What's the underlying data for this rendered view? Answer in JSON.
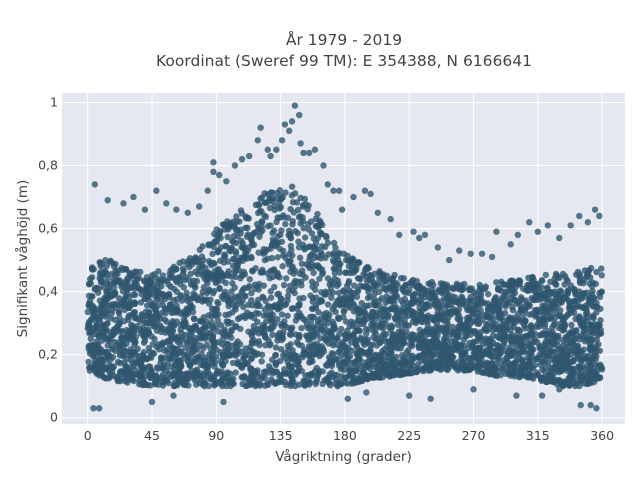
{
  "chart_data": {
    "type": "scatter",
    "title_lines": [
      "År 1979 - 2019",
      "Koordinat (Sweref 99 TM): E 354388, N 6166641"
    ],
    "xlabel": "Vågriktning (grader)",
    "ylabel": "Signifikant våghöjd (m)",
    "xlim": [
      -18,
      376
    ],
    "ylim": [
      -0.02,
      1.03
    ],
    "x_ticks": [
      0,
      45,
      90,
      135,
      180,
      225,
      270,
      315,
      360
    ],
    "x_tick_labels": [
      "0",
      "45",
      "90",
      "135",
      "180",
      "225",
      "270",
      "315",
      "360"
    ],
    "y_ticks": [
      0,
      0.2,
      0.4,
      0.6,
      0.8,
      1
    ],
    "y_tick_labels": [
      "0",
      "0,2",
      "0,4",
      "0,6",
      "0,8",
      "1"
    ],
    "grid": true,
    "marker_color": "#30566f",
    "plot_background": "#e5e8f0",
    "envelope": {
      "x": [
        0,
        15,
        30,
        45,
        60,
        75,
        90,
        105,
        120,
        135,
        150,
        165,
        180,
        195,
        210,
        225,
        240,
        255,
        270,
        285,
        300,
        315,
        330,
        345,
        360
      ],
      "lower": [
        0.15,
        0.12,
        0.11,
        0.1,
        0.1,
        0.1,
        0.1,
        0.1,
        0.1,
        0.1,
        0.1,
        0.1,
        0.1,
        0.12,
        0.13,
        0.14,
        0.15,
        0.15,
        0.15,
        0.13,
        0.13,
        0.12,
        0.1,
        0.1,
        0.12
      ],
      "upper": [
        0.5,
        0.5,
        0.48,
        0.46,
        0.48,
        0.52,
        0.6,
        0.65,
        0.7,
        0.75,
        0.72,
        0.62,
        0.52,
        0.48,
        0.46,
        0.44,
        0.43,
        0.43,
        0.42,
        0.43,
        0.44,
        0.45,
        0.46,
        0.47,
        0.48
      ]
    },
    "points": [
      [
        5,
        0.74
      ],
      [
        4,
        0.03
      ],
      [
        8,
        0.03
      ],
      [
        14,
        0.69
      ],
      [
        25,
        0.68
      ],
      [
        32,
        0.7
      ],
      [
        40,
        0.66
      ],
      [
        48,
        0.72
      ],
      [
        55,
        0.68
      ],
      [
        62,
        0.66
      ],
      [
        70,
        0.65
      ],
      [
        78,
        0.67
      ],
      [
        84,
        0.72
      ],
      [
        88,
        0.78
      ],
      [
        88,
        0.81
      ],
      [
        92,
        0.77
      ],
      [
        97,
        0.75
      ],
      [
        103,
        0.8
      ],
      [
        108,
        0.82
      ],
      [
        113,
        0.83
      ],
      [
        119,
        0.88
      ],
      [
        121,
        0.92
      ],
      [
        126,
        0.85
      ],
      [
        128,
        0.83
      ],
      [
        132,
        0.85
      ],
      [
        136,
        0.88
      ],
      [
        138,
        0.93
      ],
      [
        141,
        0.91
      ],
      [
        143,
        0.94
      ],
      [
        145,
        0.99
      ],
      [
        148,
        0.96
      ],
      [
        149,
        0.87
      ],
      [
        151,
        0.84
      ],
      [
        155,
        0.84
      ],
      [
        159,
        0.85
      ],
      [
        165,
        0.8
      ],
      [
        168,
        0.74
      ],
      [
        172,
        0.72
      ],
      [
        176,
        0.72
      ],
      [
        178,
        0.66
      ],
      [
        186,
        0.7
      ],
      [
        194,
        0.72
      ],
      [
        198,
        0.71
      ],
      [
        203,
        0.65
      ],
      [
        212,
        0.63
      ],
      [
        218,
        0.58
      ],
      [
        228,
        0.59
      ],
      [
        232,
        0.57
      ],
      [
        236,
        0.58
      ],
      [
        245,
        0.54
      ],
      [
        253,
        0.5
      ],
      [
        260,
        0.53
      ],
      [
        268,
        0.52
      ],
      [
        276,
        0.52
      ],
      [
        283,
        0.51
      ],
      [
        286,
        0.59
      ],
      [
        296,
        0.55
      ],
      [
        301,
        0.58
      ],
      [
        309,
        0.62
      ],
      [
        315,
        0.59
      ],
      [
        322,
        0.61
      ],
      [
        330,
        0.57
      ],
      [
        338,
        0.61
      ],
      [
        344,
        0.64
      ],
      [
        350,
        0.62
      ],
      [
        355,
        0.66
      ],
      [
        358,
        0.64
      ],
      [
        182,
        0.06
      ],
      [
        225,
        0.07
      ],
      [
        240,
        0.06
      ],
      [
        300,
        0.07
      ],
      [
        318,
        0.07
      ],
      [
        345,
        0.04
      ],
      [
        352,
        0.04
      ],
      [
        356,
        0.03
      ],
      [
        330,
        0.09
      ],
      [
        270,
        0.09
      ],
      [
        195,
        0.08
      ],
      [
        45,
        0.05
      ],
      [
        60,
        0.07
      ],
      [
        95,
        0.05
      ]
    ]
  }
}
